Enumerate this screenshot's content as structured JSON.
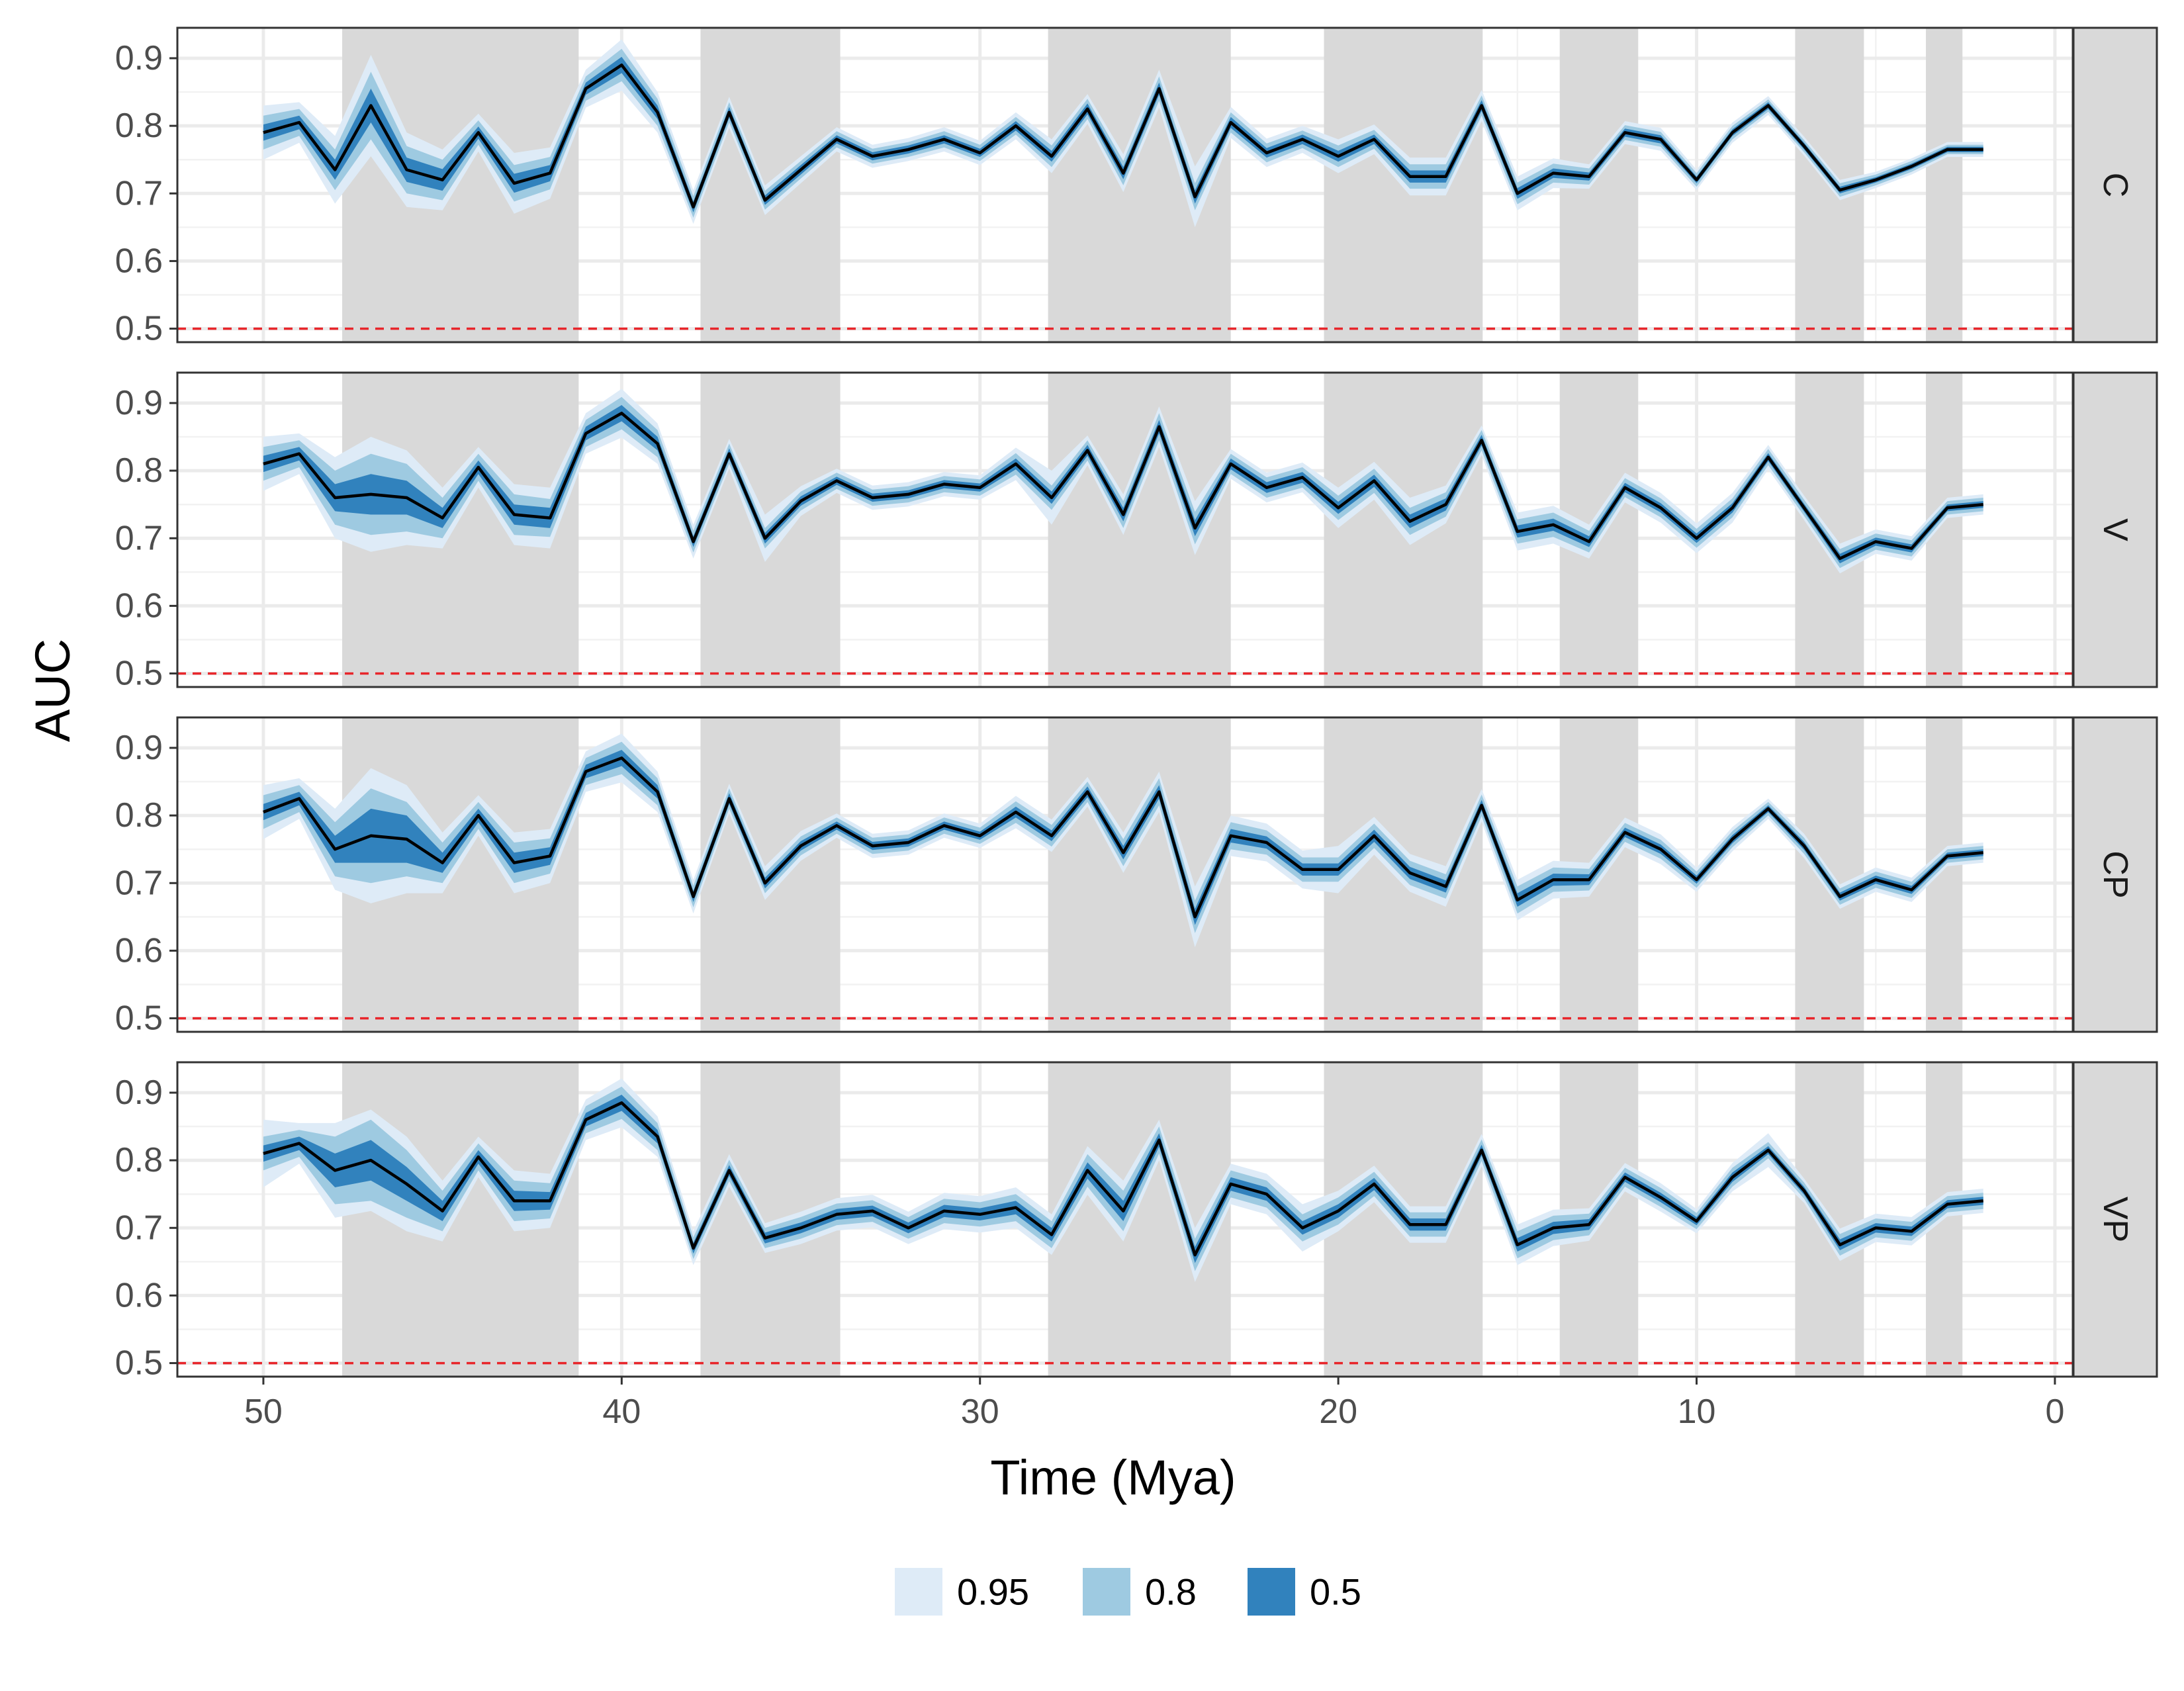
{
  "chart_data": {
    "type": "area",
    "xlabel": "Time (Mya)",
    "ylabel": "AUC",
    "x_reversed": true,
    "xlim": [
      52.4,
      -0.5
    ],
    "ylim": [
      0.48,
      0.945
    ],
    "x_ticks": [
      50,
      40,
      30,
      20,
      10,
      0
    ],
    "y_ticks": [
      0.5,
      0.6,
      0.7,
      0.8,
      0.9
    ],
    "x_tick_labels": [
      "50",
      "40",
      "30",
      "20",
      "10",
      "0"
    ],
    "y_tick_labels": [
      "0.5",
      "0.6",
      "0.7",
      "0.8",
      "0.9"
    ],
    "grid": true,
    "reference_line": {
      "y": 0.5,
      "color": "#e8262b",
      "style": "dashed"
    },
    "shaded_periods": [
      [
        47.8,
        41.2
      ],
      [
        37.8,
        33.9
      ],
      [
        28.1,
        23.0
      ],
      [
        20.4,
        15.97
      ],
      [
        13.82,
        11.63
      ],
      [
        7.25,
        5.33
      ],
      [
        3.6,
        2.58
      ]
    ],
    "legend": {
      "position": "bottom",
      "entries": [
        {
          "label": "0.95",
          "color": "#deebf7"
        },
        {
          "label": "0.8",
          "color": "#9ecae1"
        },
        {
          "label": "0.5",
          "color": "#3182bd"
        }
      ]
    },
    "colors": {
      "median_line": "#000000",
      "period_shade": "#d9d9d9",
      "strip_fill": "#d9d9d9"
    },
    "x": [
      50,
      49,
      48,
      47,
      46,
      45,
      44,
      43,
      42,
      41,
      40,
      39,
      38,
      37,
      36,
      35,
      34,
      33,
      32,
      31,
      30,
      29,
      28,
      27,
      26,
      25,
      24,
      23,
      22,
      21,
      20,
      19,
      18,
      17,
      16,
      15,
      14,
      13,
      12,
      11,
      10,
      9,
      8,
      7,
      6,
      5,
      4,
      3,
      2
    ],
    "panels": [
      {
        "strip": "C",
        "median": [
          0.79,
          0.805,
          0.735,
          0.83,
          0.735,
          0.72,
          0.79,
          0.715,
          0.73,
          0.855,
          0.89,
          0.82,
          0.68,
          0.82,
          0.69,
          0.735,
          0.78,
          0.755,
          0.765,
          0.78,
          0.76,
          0.8,
          0.755,
          0.825,
          0.73,
          0.855,
          0.695,
          0.805,
          0.76,
          0.78,
          0.755,
          0.78,
          0.725,
          0.725,
          0.83,
          0.7,
          0.73,
          0.725,
          0.79,
          0.78,
          0.72,
          0.79,
          0.83,
          0.77,
          0.705,
          0.72,
          0.74,
          0.765,
          0.765
        ],
        "hw50": [
          0.012,
          0.01,
          0.015,
          0.025,
          0.018,
          0.016,
          0.009,
          0.014,
          0.012,
          0.009,
          0.012,
          0.01,
          0.008,
          0.008,
          0.007,
          0.007,
          0.006,
          0.006,
          0.006,
          0.006,
          0.006,
          0.007,
          0.008,
          0.008,
          0.009,
          0.009,
          0.01,
          0.008,
          0.007,
          0.007,
          0.008,
          0.007,
          0.009,
          0.009,
          0.008,
          0.008,
          0.007,
          0.006,
          0.006,
          0.006,
          0.005,
          0.005,
          0.005,
          0.005,
          0.005,
          0.004,
          0.004,
          0.004,
          0.004
        ],
        "hw80": [
          0.025,
          0.02,
          0.03,
          0.05,
          0.035,
          0.03,
          0.018,
          0.027,
          0.024,
          0.018,
          0.024,
          0.02,
          0.016,
          0.015,
          0.014,
          0.013,
          0.012,
          0.011,
          0.011,
          0.012,
          0.012,
          0.013,
          0.016,
          0.015,
          0.018,
          0.018,
          0.02,
          0.015,
          0.014,
          0.013,
          0.016,
          0.014,
          0.018,
          0.018,
          0.015,
          0.016,
          0.014,
          0.012,
          0.011,
          0.011,
          0.01,
          0.01,
          0.009,
          0.009,
          0.01,
          0.008,
          0.008,
          0.007,
          0.007
        ],
        "hw95": [
          0.04,
          0.03,
          0.05,
          0.075,
          0.055,
          0.045,
          0.028,
          0.045,
          0.038,
          0.028,
          0.038,
          0.03,
          0.025,
          0.023,
          0.022,
          0.02,
          0.018,
          0.017,
          0.017,
          0.018,
          0.018,
          0.02,
          0.025,
          0.022,
          0.028,
          0.028,
          0.045,
          0.023,
          0.021,
          0.02,
          0.025,
          0.022,
          0.028,
          0.028,
          0.023,
          0.025,
          0.022,
          0.018,
          0.017,
          0.017,
          0.015,
          0.015,
          0.014,
          0.014,
          0.015,
          0.012,
          0.012,
          0.011,
          0.011
        ]
      },
      {
        "strip": "V",
        "median": [
          0.81,
          0.825,
          0.76,
          0.765,
          0.76,
          0.73,
          0.805,
          0.735,
          0.73,
          0.855,
          0.885,
          0.84,
          0.695,
          0.825,
          0.7,
          0.755,
          0.785,
          0.76,
          0.765,
          0.78,
          0.775,
          0.81,
          0.76,
          0.83,
          0.735,
          0.865,
          0.715,
          0.81,
          0.775,
          0.79,
          0.745,
          0.785,
          0.725,
          0.75,
          0.845,
          0.71,
          0.72,
          0.695,
          0.775,
          0.745,
          0.7,
          0.745,
          0.82,
          0.745,
          0.67,
          0.695,
          0.685,
          0.745,
          0.75
        ],
        "hw50": [
          0.012,
          0.01,
          0.02,
          0.03,
          0.025,
          0.015,
          0.01,
          0.015,
          0.015,
          0.01,
          0.012,
          0.01,
          0.008,
          0.008,
          0.008,
          0.007,
          0.006,
          0.006,
          0.006,
          0.006,
          0.006,
          0.008,
          0.009,
          0.008,
          0.01,
          0.01,
          0.012,
          0.008,
          0.008,
          0.008,
          0.009,
          0.009,
          0.01,
          0.009,
          0.008,
          0.009,
          0.009,
          0.008,
          0.007,
          0.007,
          0.007,
          0.007,
          0.006,
          0.006,
          0.007,
          0.006,
          0.006,
          0.005,
          0.005
        ],
        "hw80": [
          0.025,
          0.02,
          0.04,
          0.06,
          0.05,
          0.03,
          0.02,
          0.03,
          0.028,
          0.02,
          0.024,
          0.02,
          0.016,
          0.015,
          0.015,
          0.014,
          0.012,
          0.012,
          0.012,
          0.012,
          0.012,
          0.016,
          0.018,
          0.015,
          0.02,
          0.02,
          0.024,
          0.015,
          0.015,
          0.015,
          0.018,
          0.018,
          0.02,
          0.018,
          0.015,
          0.018,
          0.018,
          0.016,
          0.014,
          0.014,
          0.014,
          0.014,
          0.012,
          0.012,
          0.014,
          0.012,
          0.012,
          0.01,
          0.01
        ],
        "hw95": [
          0.04,
          0.03,
          0.06,
          0.085,
          0.07,
          0.045,
          0.03,
          0.045,
          0.045,
          0.03,
          0.036,
          0.03,
          0.025,
          0.022,
          0.035,
          0.022,
          0.018,
          0.018,
          0.018,
          0.018,
          0.018,
          0.024,
          0.04,
          0.022,
          0.03,
          0.03,
          0.04,
          0.022,
          0.022,
          0.022,
          0.03,
          0.028,
          0.035,
          0.028,
          0.022,
          0.028,
          0.028,
          0.025,
          0.022,
          0.022,
          0.022,
          0.022,
          0.018,
          0.018,
          0.022,
          0.018,
          0.018,
          0.015,
          0.015
        ]
      },
      {
        "strip": "CP",
        "median": [
          0.805,
          0.825,
          0.75,
          0.77,
          0.765,
          0.73,
          0.8,
          0.73,
          0.74,
          0.865,
          0.885,
          0.835,
          0.68,
          0.825,
          0.7,
          0.755,
          0.785,
          0.755,
          0.76,
          0.785,
          0.77,
          0.805,
          0.77,
          0.835,
          0.745,
          0.835,
          0.65,
          0.77,
          0.76,
          0.72,
          0.72,
          0.77,
          0.715,
          0.695,
          0.815,
          0.675,
          0.705,
          0.705,
          0.775,
          0.75,
          0.705,
          0.765,
          0.81,
          0.755,
          0.68,
          0.705,
          0.69,
          0.74,
          0.745
        ],
        "hw50": [
          0.012,
          0.01,
          0.02,
          0.04,
          0.035,
          0.015,
          0.01,
          0.015,
          0.013,
          0.01,
          0.012,
          0.01,
          0.008,
          0.008,
          0.008,
          0.007,
          0.006,
          0.006,
          0.006,
          0.006,
          0.006,
          0.008,
          0.008,
          0.008,
          0.01,
          0.01,
          0.012,
          0.01,
          0.009,
          0.009,
          0.009,
          0.009,
          0.009,
          0.009,
          0.008,
          0.01,
          0.009,
          0.008,
          0.007,
          0.007,
          0.006,
          0.006,
          0.005,
          0.006,
          0.006,
          0.006,
          0.006,
          0.005,
          0.005
        ],
        "hw80": [
          0.025,
          0.02,
          0.04,
          0.07,
          0.055,
          0.03,
          0.02,
          0.03,
          0.026,
          0.02,
          0.024,
          0.02,
          0.016,
          0.015,
          0.015,
          0.014,
          0.012,
          0.012,
          0.012,
          0.012,
          0.012,
          0.016,
          0.016,
          0.015,
          0.02,
          0.02,
          0.024,
          0.02,
          0.018,
          0.018,
          0.018,
          0.018,
          0.018,
          0.018,
          0.016,
          0.02,
          0.018,
          0.016,
          0.014,
          0.014,
          0.012,
          0.012,
          0.01,
          0.012,
          0.012,
          0.012,
          0.012,
          0.01,
          0.01
        ],
        "hw95": [
          0.04,
          0.03,
          0.06,
          0.1,
          0.08,
          0.045,
          0.03,
          0.045,
          0.04,
          0.03,
          0.036,
          0.03,
          0.025,
          0.022,
          0.025,
          0.022,
          0.018,
          0.018,
          0.018,
          0.018,
          0.018,
          0.024,
          0.024,
          0.022,
          0.03,
          0.03,
          0.045,
          0.03,
          0.028,
          0.028,
          0.035,
          0.028,
          0.028,
          0.03,
          0.024,
          0.03,
          0.028,
          0.025,
          0.022,
          0.022,
          0.018,
          0.018,
          0.015,
          0.018,
          0.018,
          0.018,
          0.018,
          0.015,
          0.015
        ]
      },
      {
        "strip": "VP",
        "median": [
          0.81,
          0.825,
          0.785,
          0.8,
          0.765,
          0.725,
          0.805,
          0.74,
          0.74,
          0.86,
          0.885,
          0.835,
          0.67,
          0.785,
          0.685,
          0.7,
          0.72,
          0.725,
          0.7,
          0.725,
          0.72,
          0.73,
          0.69,
          0.785,
          0.725,
          0.83,
          0.66,
          0.765,
          0.75,
          0.7,
          0.725,
          0.765,
          0.705,
          0.705,
          0.815,
          0.675,
          0.7,
          0.705,
          0.775,
          0.745,
          0.71,
          0.775,
          0.815,
          0.755,
          0.675,
          0.7,
          0.695,
          0.735,
          0.74
        ],
        "hw50": [
          0.012,
          0.01,
          0.025,
          0.03,
          0.025,
          0.015,
          0.01,
          0.015,
          0.013,
          0.01,
          0.012,
          0.01,
          0.008,
          0.008,
          0.008,
          0.008,
          0.008,
          0.008,
          0.008,
          0.009,
          0.009,
          0.01,
          0.01,
          0.012,
          0.015,
          0.01,
          0.012,
          0.01,
          0.01,
          0.01,
          0.01,
          0.009,
          0.009,
          0.009,
          0.008,
          0.01,
          0.009,
          0.008,
          0.007,
          0.007,
          0.006,
          0.007,
          0.006,
          0.006,
          0.008,
          0.007,
          0.007,
          0.006,
          0.006
        ],
        "hw80": [
          0.025,
          0.02,
          0.05,
          0.06,
          0.05,
          0.03,
          0.02,
          0.03,
          0.026,
          0.02,
          0.024,
          0.02,
          0.016,
          0.016,
          0.015,
          0.016,
          0.016,
          0.016,
          0.016,
          0.018,
          0.018,
          0.02,
          0.02,
          0.024,
          0.03,
          0.02,
          0.024,
          0.02,
          0.02,
          0.02,
          0.02,
          0.018,
          0.018,
          0.018,
          0.016,
          0.02,
          0.018,
          0.016,
          0.014,
          0.014,
          0.012,
          0.014,
          0.012,
          0.012,
          0.016,
          0.014,
          0.014,
          0.012,
          0.012
        ],
        "hw95": [
          0.05,
          0.03,
          0.07,
          0.075,
          0.07,
          0.045,
          0.03,
          0.045,
          0.04,
          0.03,
          0.036,
          0.03,
          0.025,
          0.024,
          0.022,
          0.024,
          0.024,
          0.024,
          0.024,
          0.027,
          0.027,
          0.03,
          0.03,
          0.036,
          0.045,
          0.03,
          0.04,
          0.03,
          0.03,
          0.035,
          0.03,
          0.027,
          0.027,
          0.027,
          0.024,
          0.03,
          0.027,
          0.024,
          0.021,
          0.021,
          0.018,
          0.021,
          0.025,
          0.018,
          0.024,
          0.021,
          0.021,
          0.018,
          0.018
        ]
      }
    ]
  }
}
